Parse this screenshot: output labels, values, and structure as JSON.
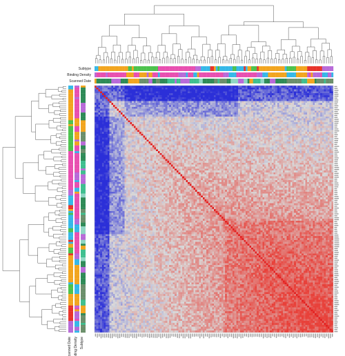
{
  "chart_data": {
    "type": "heatmap",
    "title": "",
    "n_samples": 128,
    "color_scale": {
      "low": "#2b2fd8",
      "mid": "#d9d9d9",
      "high": "#e8413a"
    },
    "diagonal_color": "#e32222",
    "annotation_tracks": [
      {
        "name": "Subtype",
        "label": "Subtype",
        "palette": [
          "#e8332a",
          "#35b8e8",
          "#f2a51f",
          "#b86ad8",
          "#e84fb0",
          "#4cc24c"
        ]
      },
      {
        "name": "Binding Density",
        "label": "Binding Density",
        "palette": [
          "#35b8e8",
          "#b86ad8",
          "#e84fb0",
          "#f2a51f"
        ]
      },
      {
        "name": "Scanned Date",
        "label": "Scanned Date",
        "palette": [
          "#2e8b57",
          "#3fbf8f",
          "#6b8f6b",
          "#b86ad8",
          "#f2a51f",
          "#8fd6c4"
        ]
      }
    ],
    "column_dendrogram": true,
    "row_dendrogram": true,
    "legend": "none"
  }
}
